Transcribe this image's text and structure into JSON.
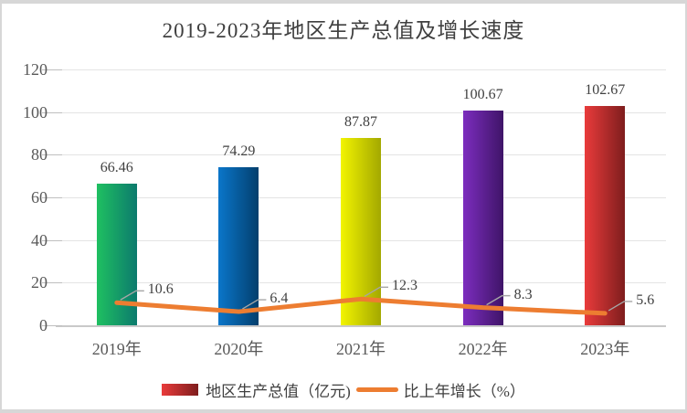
{
  "title": "2019-2023年地区生产总值及增长速度",
  "chart_data": {
    "type": "bar",
    "subtype": "bar-line-combo",
    "title": "2019-2023年地区生产总值及增长速度",
    "categories": [
      "2019年",
      "2020年",
      "2021年",
      "2022年",
      "2023年"
    ],
    "series": [
      {
        "name": "地区生产总值（亿元)",
        "type": "bar",
        "values": [
          66.46,
          74.29,
          87.87,
          100.67,
          102.67
        ],
        "labels": [
          "66.46",
          "74.29",
          "87.87",
          "100.67",
          "102.67"
        ],
        "bar_gradients": [
          [
            "#1fc061",
            "#0c7a6d"
          ],
          [
            "#0a76ca",
            "#033f6d"
          ],
          [
            "#f2f400",
            "#a3a800"
          ],
          [
            "#7c2dbe",
            "#3f1468"
          ],
          [
            "#e93b3b",
            "#7e1d1d"
          ]
        ]
      },
      {
        "name": "比上年增长（%）",
        "type": "line",
        "values": [
          10.6,
          6.4,
          12.3,
          8.3,
          5.6
        ],
        "labels": [
          "10.6",
          "6.4",
          "12.3",
          "8.3",
          "5.6"
        ],
        "color": "#ed7d31"
      }
    ],
    "xlabel": "",
    "ylabel": "",
    "y_ticks": [
      0,
      20,
      40,
      60,
      80,
      100,
      120
    ],
    "ylim": [
      0,
      120
    ],
    "grid": true,
    "legend_position": "bottom"
  },
  "legend": {
    "items": [
      {
        "label": "地区生产总值（亿元)",
        "swatch_type": "bar-gradient",
        "swatch_colors": [
          "#e93b3b",
          "#7e1d1d"
        ]
      },
      {
        "label": "比上年增长（%）",
        "swatch_type": "line",
        "swatch_color": "#ed7d31"
      }
    ]
  },
  "colors": {
    "title_text": "#3f3f3f",
    "axis_text": "#595959",
    "value_text": "#404040",
    "gridline": "#e4e4e4",
    "baseline": "#c9c9c9",
    "tick": "#bfbfbf",
    "leader_line": "#a6a6a6",
    "line": "#ed7d31",
    "frame_border": "#d7d7d7",
    "background": "#ffffff"
  }
}
